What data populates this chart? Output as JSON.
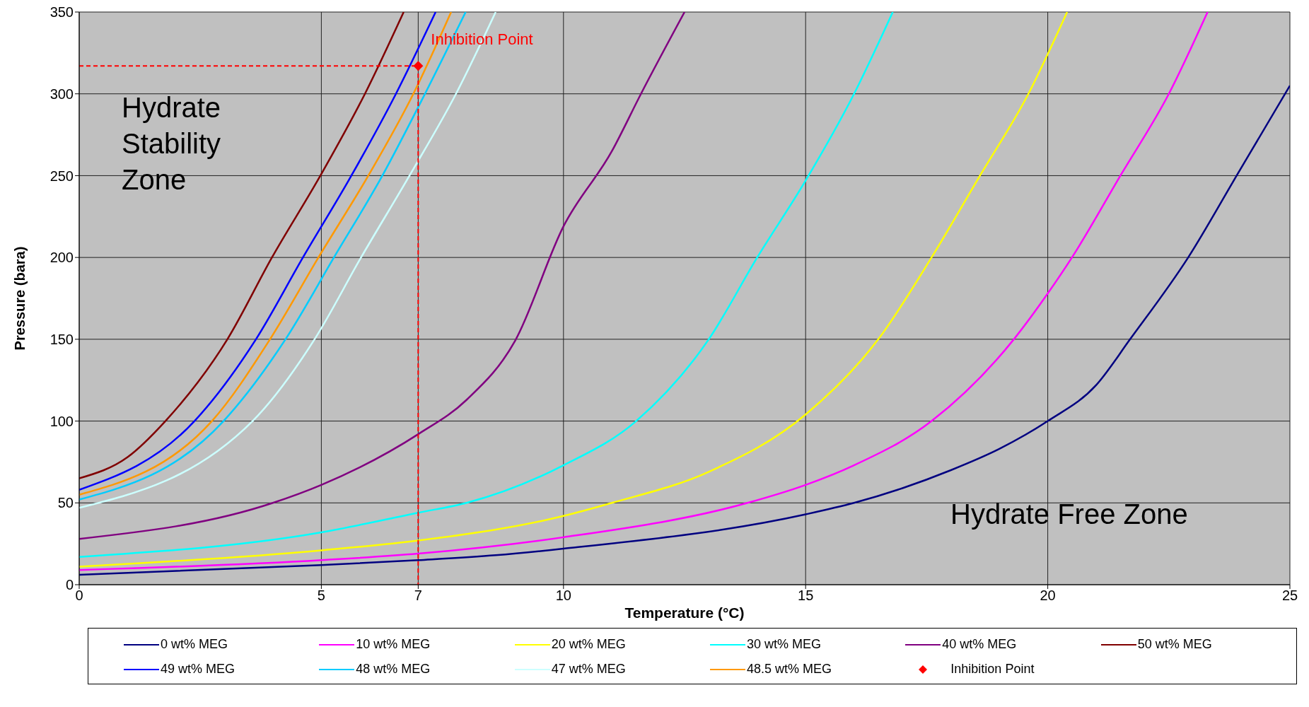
{
  "chart_data": {
    "type": "line",
    "xlabel": "Temperature (°C)",
    "ylabel": "Pressure (bara)",
    "xlim": [
      0,
      25
    ],
    "ylim": [
      0,
      350
    ],
    "xticks": [
      0,
      5,
      7,
      10,
      15,
      20,
      25
    ],
    "yticks": [
      0,
      50,
      100,
      150,
      200,
      250,
      300,
      350
    ],
    "grid": true,
    "legend": "bottom",
    "marker": "none",
    "line_style": "solid",
    "annotations": [
      "Hydrate Stability Zone",
      "Hydrate Free Zone",
      {
        "text": "Inhibition Point",
        "x": 7,
        "y": 317
      }
    ],
    "series": [
      {
        "name": "0 wt% MEG",
        "color": "#000080",
        "x": [
          0,
          5,
          7,
          8.6,
          10,
          15,
          16,
          17,
          18,
          19,
          20,
          21,
          21.7,
          22.9,
          23.9,
          25
        ],
        "values": [
          6,
          12,
          15,
          18,
          22,
          43,
          50,
          59,
          70,
          83,
          100,
          122,
          150,
          200,
          250,
          305
        ]
      },
      {
        "name": "10 wt% MEG",
        "color": "#ff00ff",
        "x": [
          0,
          5,
          7,
          10,
          13.8,
          15,
          16,
          17.6,
          19.3,
          20,
          20.5,
          21.5,
          22.5,
          23.3
        ],
        "values": [
          9,
          15,
          19,
          29,
          50,
          61,
          73,
          100,
          150,
          178,
          200,
          250,
          300,
          350
        ]
      },
      {
        "name": "20 wt% MEG",
        "color": "#ffff00",
        "x": [
          0,
          5,
          7,
          10,
          11,
          13,
          15,
          16.5,
          17.6,
          18.6,
          19.6,
          20.4
        ],
        "values": [
          11,
          21,
          27,
          42,
          50,
          69,
          104,
          150,
          200,
          250,
          300,
          350
        ]
      },
      {
        "name": "30 wt% MEG",
        "color": "#00ffff",
        "x": [
          0,
          5,
          7,
          8,
          10,
          11.5,
          13,
          14,
          15,
          16,
          16.8
        ],
        "values": [
          17,
          32,
          44,
          50,
          73,
          100,
          150,
          200,
          247,
          300,
          350
        ]
      },
      {
        "name": "40 wt% MEG",
        "color": "#800080",
        "x": [
          0,
          4,
          5,
          7,
          8,
          9,
          10,
          11,
          11.6,
          12.5
        ],
        "values": [
          28,
          50,
          61,
          92,
          113,
          149,
          219,
          265,
          300,
          350
        ]
      },
      {
        "name": "50 wt% MEG",
        "color": "#800000",
        "x": [
          0,
          1,
          1.78,
          3.06,
          3.98,
          4.98,
          5.9,
          6.7
        ],
        "values": [
          65,
          78,
          100,
          150,
          200,
          250,
          300,
          350
        ]
      },
      {
        "name": "49 wt% MEG",
        "color": "#0000ff",
        "x": [
          0,
          2.38,
          3.65,
          4.62,
          5.62,
          6.54,
          7.36
        ],
        "values": [
          58,
          100,
          150,
          200,
          250,
          300,
          350
        ]
      },
      {
        "name": "48 wt% MEG",
        "color": "#00ccff",
        "x": [
          0,
          2.98,
          4.26,
          5.26,
          6.26,
          7.14,
          7.98
        ],
        "values": [
          52,
          100,
          150,
          200,
          250,
          300,
          350
        ]
      },
      {
        "name": "47 wt% MEG",
        "color": "#ccffff",
        "x": [
          0,
          3.58,
          4.86,
          5.82,
          6.82,
          7.78,
          8.6
        ],
        "values": [
          47,
          100,
          150,
          200,
          250,
          300,
          350
        ]
      },
      {
        "name": "48.5 wt% MEG",
        "color": "#ff9900",
        "x": [
          0,
          2.74,
          3.94,
          4.94,
          5.97,
          6.9,
          7.68
        ],
        "values": [
          55,
          100,
          150,
          200,
          250,
          300,
          350
        ]
      },
      {
        "name": "Inhibition Point",
        "type": "scatter",
        "marker": "diamond",
        "color": "#ff0000",
        "x": [
          7
        ],
        "values": [
          317
        ]
      },
      {
        "type": "line",
        "line_style": "dashed",
        "color": "#ff0000",
        "x": [
          0,
          7,
          7
        ],
        "values": [
          317,
          317,
          0
        ]
      }
    ]
  }
}
